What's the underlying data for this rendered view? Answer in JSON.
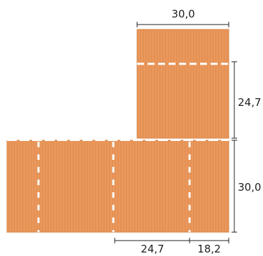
{
  "diagram": {
    "brick_color": "#e9965a",
    "brick_shadow_color": "#d9823f",
    "joint_color": "#ffffff",
    "line_color": "#222222",
    "dimensions": {
      "top_width": "30,0",
      "top_height": "24,7",
      "bottom_height": "30,0",
      "bottom_width_main": "24,7",
      "bottom_width_end": "18,2"
    }
  }
}
